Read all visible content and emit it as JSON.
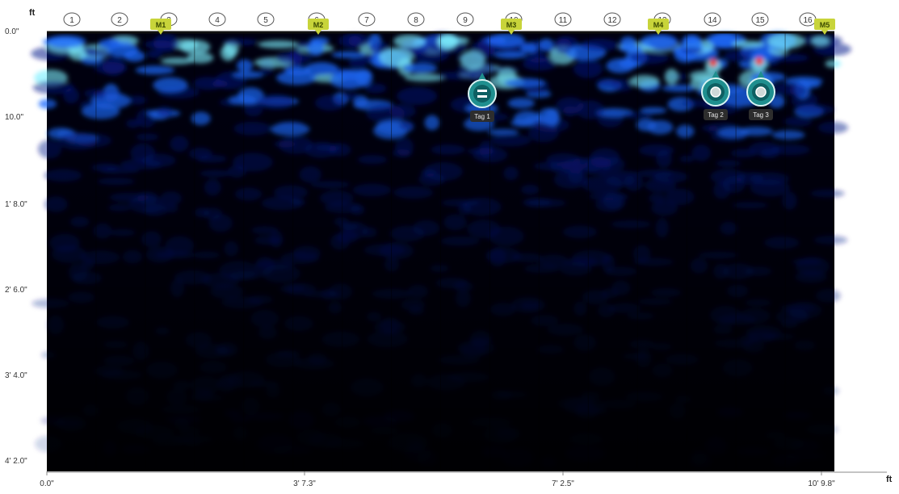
{
  "axes": {
    "depth_unit": "ft",
    "distance_unit": "ft",
    "depth_ticks": [
      "0.0\"",
      "10.0\"",
      "1' 8.0\"",
      "2' 6.0\"",
      "3' 4.0\"",
      "4' 2.0\""
    ],
    "distance_ticks": [
      "0.0\"",
      "3' 7.3\"",
      "7' 2.5\"",
      "10' 9.8\""
    ]
  },
  "scan_lines": [
    "1",
    "2",
    "3",
    "4",
    "5",
    "6",
    "7",
    "8",
    "9",
    "10",
    "11",
    "12",
    "13",
    "14",
    "15",
    "16"
  ],
  "markers": [
    "M1",
    "M2",
    "M3",
    "M4",
    "M5"
  ],
  "tags": [
    {
      "label": "Tag 1",
      "icon": "equals-icon"
    },
    {
      "label": "Tag 2",
      "icon": "circle-icon"
    },
    {
      "label": "Tag 3",
      "icon": "circle-icon"
    }
  ],
  "colors": {
    "marker": "#c8d43a",
    "tag_ring": "#1f8f8f",
    "scan_background": "#000010",
    "signal_low": "#0a1a8a",
    "signal_mid": "#1e6bff",
    "signal_high": "#7cf0ff",
    "signal_peak": "#ff3010"
  }
}
